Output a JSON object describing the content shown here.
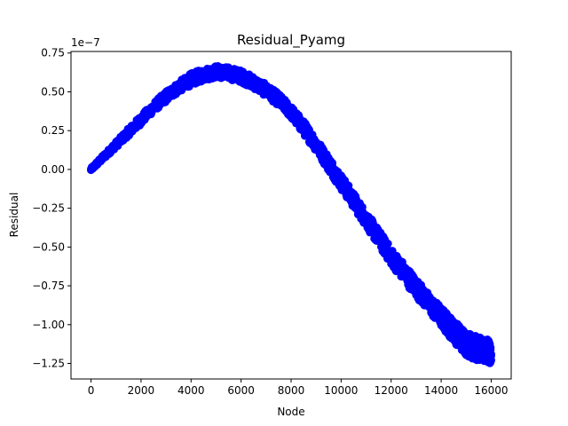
{
  "chart_data": {
    "type": "scatter",
    "title": "Residual_Pyamg",
    "xlabel": "Node",
    "ylabel": "Residual",
    "y_offset_label": "1e−7",
    "y_scale_exponent": -7,
    "xlim": [
      -800,
      16800
    ],
    "ylim": [
      -1.35,
      0.76
    ],
    "xticks": [
      0,
      2000,
      4000,
      6000,
      8000,
      10000,
      12000,
      14000,
      16000
    ],
    "xtick_labels": [
      "0",
      "2000",
      "4000",
      "6000",
      "8000",
      "10000",
      "12000",
      "14000",
      "16000"
    ],
    "yticks": [
      0.75,
      0.5,
      0.25,
      0.0,
      -0.25,
      -0.5,
      -0.75,
      -1.0,
      -1.25
    ],
    "ytick_labels": [
      "0.75",
      "0.50",
      "0.25",
      "0.00",
      "−0.25",
      "−0.50",
      "−0.75",
      "−1.00",
      "−1.25"
    ],
    "grid": false,
    "legend": "none",
    "marker_color": "#0000ff",
    "series": [
      {
        "x": [
          0,
          500,
          1000,
          1500,
          2000,
          2500,
          3000,
          3500,
          4000,
          4500,
          5000,
          5500,
          6000,
          6500,
          7000,
          7500,
          8000,
          8500,
          9000,
          9500,
          10000,
          10500,
          11000,
          11500,
          12000,
          12500,
          13000,
          13500,
          14000,
          14500,
          15000,
          15500,
          16000
        ],
        "y": [
          0.0,
          0.08,
          0.16,
          0.24,
          0.32,
          0.4,
          0.47,
          0.53,
          0.58,
          0.61,
          0.63,
          0.62,
          0.6,
          0.56,
          0.51,
          0.45,
          0.37,
          0.27,
          0.16,
          0.04,
          -0.08,
          -0.2,
          -0.32,
          -0.44,
          -0.56,
          -0.66,
          -0.76,
          -0.86,
          -0.95,
          -1.04,
          -1.12,
          -1.16,
          -1.18
        ],
        "band": [
          0.01,
          0.015,
          0.02,
          0.025,
          0.03,
          0.03,
          0.035,
          0.035,
          0.04,
          0.04,
          0.04,
          0.04,
          0.04,
          0.04,
          0.04,
          0.04,
          0.04,
          0.045,
          0.045,
          0.05,
          0.05,
          0.05,
          0.05,
          0.055,
          0.055,
          0.06,
          0.06,
          0.06,
          0.065,
          0.07,
          0.08,
          0.08,
          0.08
        ]
      }
    ]
  }
}
